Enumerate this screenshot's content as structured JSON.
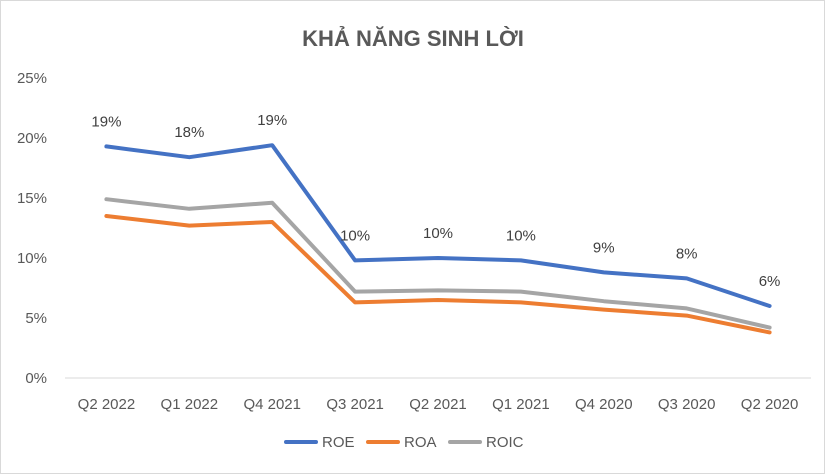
{
  "chart_data": {
    "type": "line",
    "title": "KHẢ NĂNG SINH LỜI",
    "categories": [
      "Q2 2022",
      "Q1 2022",
      "Q4 2021",
      "Q3 2021",
      "Q2 2021",
      "Q1 2021",
      "Q4 2020",
      "Q3 2020",
      "Q2 2020"
    ],
    "ylim": [
      0,
      25
    ],
    "yticks": [
      0,
      5,
      10,
      15,
      20,
      25
    ],
    "ytick_labels": [
      "0%",
      "5%",
      "10%",
      "15%",
      "20%",
      "25%"
    ],
    "grid": false,
    "legend_position": "bottom",
    "series": [
      {
        "name": "ROE",
        "color": "#4472c4",
        "values": [
          19.3,
          18.4,
          19.4,
          9.8,
          10.0,
          9.8,
          8.8,
          8.3,
          6.0
        ],
        "labels": [
          "19%",
          "18%",
          "19%",
          "10%",
          "10%",
          "10%",
          "9%",
          "8%",
          "6%"
        ]
      },
      {
        "name": "ROA",
        "color": "#ed7d31",
        "values": [
          13.5,
          12.7,
          13.0,
          6.3,
          6.5,
          6.3,
          5.7,
          5.2,
          3.8
        ]
      },
      {
        "name": "ROIC",
        "color": "#a5a5a5",
        "values": [
          14.9,
          14.1,
          14.6,
          7.2,
          7.3,
          7.2,
          6.4,
          5.8,
          4.2
        ]
      }
    ]
  }
}
